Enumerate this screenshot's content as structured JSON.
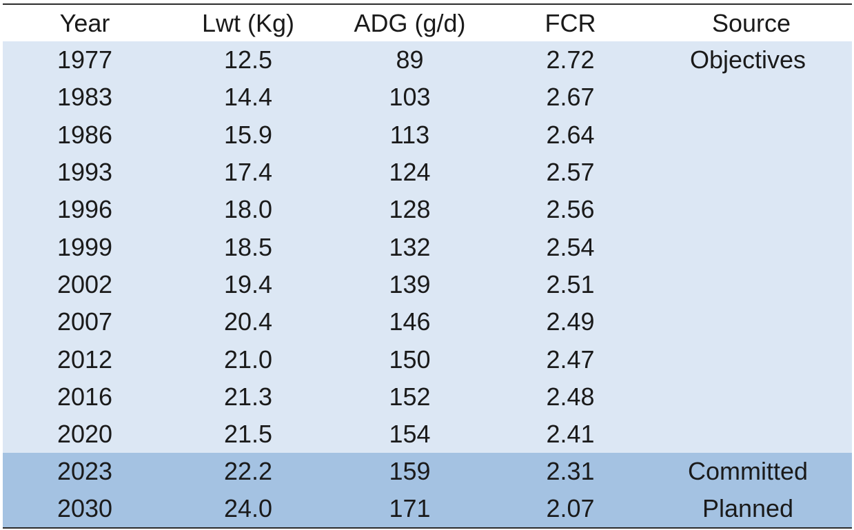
{
  "chart_data": {
    "type": "table",
    "columns": [
      "Year",
      "Lwt (Kg)",
      "ADG (g/d)",
      "FCR",
      "Source"
    ],
    "rows": [
      [
        "1977",
        "12.5",
        "89",
        "2.72",
        "Objectives"
      ],
      [
        "1983",
        "14.4",
        "103",
        "2.67",
        ""
      ],
      [
        "1986",
        "15.9",
        "113",
        "2.64",
        ""
      ],
      [
        "1993",
        "17.4",
        "124",
        "2.57",
        ""
      ],
      [
        "1996",
        "18.0",
        "128",
        "2.56",
        ""
      ],
      [
        "1999",
        "18.5",
        "132",
        "2.54",
        ""
      ],
      [
        "2002",
        "19.4",
        "139",
        "2.51",
        ""
      ],
      [
        "2007",
        "20.4",
        "146",
        "2.49",
        ""
      ],
      [
        "2012",
        "21.0",
        "150",
        "2.47",
        ""
      ],
      [
        "2016",
        "21.3",
        "152",
        "2.48",
        ""
      ],
      [
        "2020",
        "21.5",
        "154",
        "2.41",
        ""
      ],
      [
        "2023",
        "22.2",
        "159",
        "2.31",
        "Committed"
      ],
      [
        "2030",
        "24.0",
        "171",
        "2.07",
        "Planned"
      ]
    ]
  },
  "colors": {
    "objectives_band": "#dce7f4",
    "committed_planned_band": "#a4c2e2",
    "rule": "#2b2b2b"
  }
}
